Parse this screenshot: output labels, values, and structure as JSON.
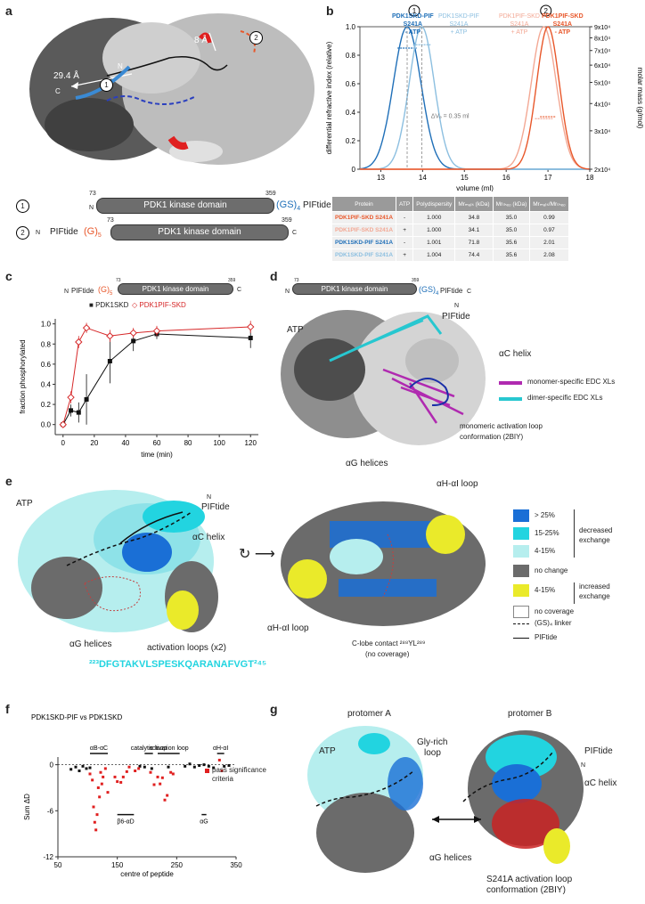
{
  "panels": {
    "a": "a",
    "b": "b",
    "c": "c",
    "d": "d",
    "e": "e",
    "f": "f",
    "g": "g"
  },
  "panel_a": {
    "dist1": "29.4 Å",
    "dist2": "8 Å",
    "circle1": "1",
    "circle2": "2",
    "n_label": "N",
    "c_label": "C",
    "construct1": {
      "n_term": "N",
      "start_res": "73",
      "end_res": "359",
      "domain": "PDK1 kinase domain",
      "linker": "(GS)",
      "linker_sub": "4",
      "tail": "PIFtide",
      "c_term": "C"
    },
    "construct2": {
      "n_term": "N",
      "head": "PIFtide",
      "linker": "(G)",
      "linker_sub": "5",
      "start_res": "73",
      "end_res": "359",
      "domain": "PDK1 kinase domain",
      "c_term": "C"
    }
  },
  "panel_b": {
    "y_left_label": "differential refractive index (relative)",
    "y_right_label": "molar mass (g/mol)",
    "x_label": "volume (ml)",
    "delta_label": "ΔVₑ = 0.35 ml",
    "peak_labels": {
      "skd_minus_l1": "PDK1SKD-PIF",
      "skd_minus_l2": "S241A",
      "skd_minus_l3": "- ATP",
      "skd_plus_l1": "PDK1SKD-PIF",
      "skd_plus_l2": "S241A",
      "skd_plus_l3": "+ ATP",
      "pif_plus_l1": "PDK1PIF-SKD",
      "pif_plus_l2": "S241A",
      "pif_plus_l3": "+ ATP",
      "pif_minus_l1": "PDK1PIF-SKD",
      "pif_minus_l2": "S241A",
      "pif_minus_l3": "- ATP"
    },
    "table": {
      "headers": [
        "Protein",
        "ATP",
        "Polydispersity",
        "Mrₘₐₗₛ (kDa)",
        "Mrₜₕₑₒ (kDa)",
        "Mrₘₐₗₛ/Mrₜₕₑₒ"
      ],
      "rows": [
        {
          "protein": "PDK1PIF-SKD S241A",
          "atp": "-",
          "poly": "1.000",
          "mals": "34.8",
          "theo": "35.0",
          "ratio": "0.99",
          "color": "#e8572a"
        },
        {
          "protein": "PDK1PIF-SKD S241A",
          "atp": "+",
          "poly": "1.000",
          "mals": "34.1",
          "theo": "35.0",
          "ratio": "0.97",
          "color": "#f3a894"
        },
        {
          "protein": "PDK1SKD-PIF S241A",
          "atp": "-",
          "poly": "1.001",
          "mals": "71.8",
          "theo": "35.6",
          "ratio": "2.01",
          "color": "#1f6fb8"
        },
        {
          "protein": "PDK1SKD-PIF S241A",
          "atp": "+",
          "poly": "1.004",
          "mals": "74.4",
          "theo": "35.6",
          "ratio": "2.08",
          "color": "#8cbfe0"
        }
      ]
    }
  },
  "chart_data": [
    {
      "type": "line",
      "panel": "b",
      "xlabel": "volume (ml)",
      "ylabel": "differential refractive index (relative)",
      "y2label": "molar mass (g/mol)",
      "xlim": [
        12.5,
        18
      ],
      "ylim": [
        0,
        1.0
      ],
      "y2lim": [
        20000,
        90000
      ],
      "y2scale": "log",
      "x_ticks": [
        13,
        14,
        15,
        16,
        17,
        18
      ],
      "y_ticks": [
        "0",
        "0.2",
        "0.4",
        "0.6",
        "0.8",
        "1.0"
      ],
      "y2_ticks": [
        "2x10⁴",
        "3x10⁴",
        "4x10⁴",
        "5x10⁴",
        "6x10⁴",
        "7x10⁴",
        "8x10⁴",
        "9x10⁴"
      ],
      "series": [
        {
          "name": "PDK1SKD-PIF S241A - ATP",
          "color": "#1f6fb8",
          "center": 13.63,
          "width": 0.33,
          "mass": 71800
        },
        {
          "name": "PDK1SKD-PIF S241A + ATP",
          "color": "#8cbfe0",
          "center": 13.98,
          "width": 0.3,
          "mass": 74400
        },
        {
          "name": "PDK1PIF-SKD S241A + ATP",
          "color": "#f3a894",
          "center": 16.9,
          "width": 0.3,
          "mass": 34100
        },
        {
          "name": "PDK1PIF-SKD S241A - ATP",
          "color": "#e8572a",
          "center": 17.0,
          "width": 0.27,
          "mass": 34800
        }
      ]
    },
    {
      "type": "line",
      "panel": "c",
      "xlabel": "time (min)",
      "ylabel": "fraction phosphorylated",
      "xlim": [
        -5,
        125
      ],
      "ylim": [
        -0.1,
        1.05
      ],
      "x_ticks": [
        0,
        20,
        40,
        60,
        80,
        100,
        120
      ],
      "y_ticks": [
        "0.0",
        "0.2",
        "0.4",
        "0.6",
        "0.8",
        "1.0"
      ],
      "series": [
        {
          "name": "PDK1SKD",
          "color": "#111111",
          "marker": "square",
          "x": [
            0,
            5,
            10,
            15,
            30,
            45,
            60,
            120
          ],
          "y": [
            0.0,
            0.14,
            0.12,
            0.25,
            0.63,
            0.83,
            0.9,
            0.86
          ],
          "err": [
            0.0,
            0.06,
            0.1,
            0.25,
            0.22,
            0.1,
            0.05,
            0.1
          ]
        },
        {
          "name": "PDK1PIF-SKD",
          "color": "#d62728",
          "marker": "diamond",
          "x": [
            0,
            5,
            10,
            15,
            30,
            45,
            60,
            120
          ],
          "y": [
            0.0,
            0.27,
            0.82,
            0.96,
            0.88,
            0.91,
            0.93,
            0.97
          ],
          "err": [
            0.0,
            0.06,
            0.06,
            0.05,
            0.06,
            0.05,
            0.05,
            0.06
          ]
        }
      ]
    },
    {
      "type": "scatter",
      "panel": "f",
      "title": "PDK1SKD-PIF vs PDK1SKD",
      "xlabel": "centre of peptide",
      "ylabel": "Sum ΔD",
      "xlim": [
        50,
        350
      ],
      "ylim": [
        -12,
        1
      ],
      "x_ticks": [
        50,
        150,
        250,
        350
      ],
      "y_ticks": [
        "0",
        "-6",
        "-12"
      ],
      "series": [
        {
          "name": "no significant change",
          "color": "#111111",
          "x": [
            72,
            80,
            86,
            92,
            98,
            104,
            188,
            196,
            208,
            236,
            264,
            272,
            280,
            288,
            296,
            304,
            312,
            330,
            338
          ],
          "y": [
            -0.6,
            -0.3,
            -0.8,
            -0.2,
            -0.5,
            -0.4,
            -0.2,
            -0.3,
            -0.5,
            -0.3,
            -0.2,
            0.1,
            -0.3,
            -0.1,
            0.0,
            -0.2,
            -0.4,
            -0.2,
            -0.1
          ]
        },
        {
          "name": "pass significance criteria",
          "color": "#e02020",
          "x": [
            104,
            108,
            110,
            112,
            114,
            116,
            118,
            120,
            122,
            124,
            126,
            130,
            134,
            146,
            150,
            156,
            160,
            166,
            170,
            180,
            186,
            206,
            212,
            218,
            222,
            226,
            230,
            234,
            240,
            244,
            322,
            326
          ],
          "y": [
            -1.2,
            -2.0,
            -5.5,
            -7.5,
            -8.5,
            -6.5,
            -3.0,
            -4.2,
            -1.0,
            -2.5,
            -1.6,
            -0.5,
            -3.6,
            -1.6,
            -2.2,
            -2.3,
            -1.6,
            -0.9,
            -0.3,
            -0.8,
            -0.5,
            -1.0,
            -2.6,
            -1.6,
            -2.5,
            -1.7,
            -4.6,
            -4.0,
            -1.0,
            -1.2,
            0.6,
            -0.8
          ]
        }
      ],
      "annotations": [
        {
          "label": "αB-αC",
          "x1": 104,
          "x2": 134,
          "pos": "above"
        },
        {
          "label": "catalytic loop",
          "x1": 196,
          "x2": 210,
          "pos": "above"
        },
        {
          "label": "activation loop",
          "x1": 218,
          "x2": 255,
          "pos": "above"
        },
        {
          "label": "αH-αI",
          "x1": 318,
          "x2": 330,
          "pos": "above"
        },
        {
          "label": "β6-αD",
          "x1": 150,
          "x2": 178,
          "pos": "below"
        },
        {
          "label": "αG",
          "x1": 292,
          "x2": 300,
          "pos": "below"
        }
      ]
    }
  ],
  "panel_c": {
    "legend_skd": "PDK1SKD",
    "legend_pif": "PDK1PIF-SKD",
    "construct": {
      "n_term": "N",
      "head": "PIFtide",
      "linker": "(G)",
      "linker_sub": "5",
      "start_res": "73",
      "end_res": "359",
      "domain": "PDK1 kinase domain",
      "c_term": "C"
    }
  },
  "panel_d": {
    "construct": {
      "n_term": "N",
      "start_res": "73",
      "end_res": "359",
      "domain": "PDK1 kinase domain",
      "linker": "(GS)",
      "linker_sub": "4",
      "tail": "PIFtide",
      "c_term": "C"
    },
    "atp": "ATP",
    "piftide": "PIFtide",
    "ac_helix": "αC helix",
    "ag_helices": "αG helices",
    "n_label": "N",
    "legend_monomer": "monomer-specific EDC XLs",
    "legend_dimer": "dimer-specific EDC XLs",
    "loop_label1": "monomeric activation loop",
    "loop_label2": "conformation (2BIY)"
  },
  "panel_e": {
    "atp": "ATP",
    "piftide": "PIFtide",
    "ac_helix": "αC helix",
    "ag_helices": "αG helices",
    "activation_loops": "activation loops (x2)",
    "n_label": "N",
    "ahai_loop1": "αH-αI loop",
    "ahai_loop2": "αH-αI loop",
    "clobe1": "C-lobe contact ²⁸⁸YL²⁸⁹",
    "clobe2": "(no coverage)",
    "sequence": "²²³DFGTAKVLSPESKQARANAFVGT²⁴⁵",
    "legend": {
      "gt25": "> 25%",
      "r15_25": "15-25%",
      "r4_15": "4-15%",
      "decreased": "decreased",
      "exchange": "exchange",
      "no_change": "no change",
      "inc_4_15": "4-15%",
      "increased": "increased",
      "exchange2": "exchange",
      "no_coverage": "no coverage",
      "linker": "(GS)₄ linker",
      "piftide": "PIFtide"
    },
    "colors": {
      "gt25": "#1a6fd6",
      "r15_25": "#22d4e0",
      "r4_15": "#b6eeee",
      "no_change": "#6b6b6b",
      "increased": "#eaea2a"
    }
  },
  "panel_f": {
    "legend_sig1": "pass significance",
    "legend_sig2": "criteria"
  },
  "panel_g": {
    "protomer_a": "protomer A",
    "protomer_b": "protomer B",
    "atp": "ATP",
    "gly_loop1": "Gly-rich",
    "gly_loop2": "loop",
    "piftide": "PIFtide",
    "n_label": "N",
    "ac_helix": "αC helix",
    "ag_helices": "αG helices",
    "s241a1": "S241A activation loop",
    "s241a2": "conformation (2BIY)"
  }
}
